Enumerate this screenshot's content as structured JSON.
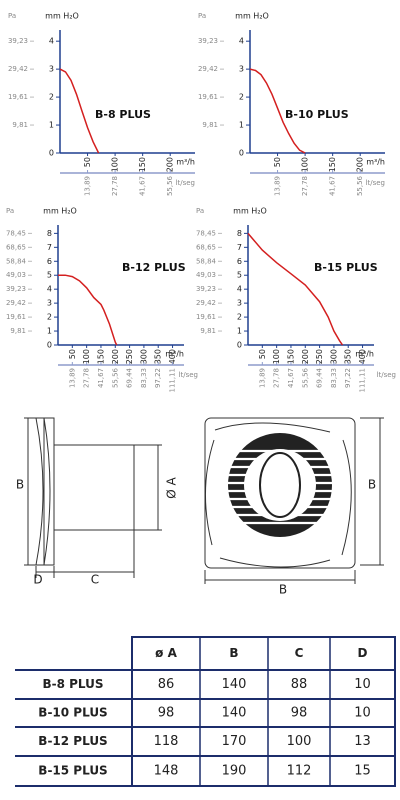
{
  "chart_data": [
    {
      "type": "line",
      "title": "B-8 PLUS",
      "y_label": "mm H₂O",
      "y2_label": "Pa",
      "x_label": "m³/h",
      "x2_label": "lt/seg",
      "color": "#d42020",
      "x": [
        0,
        10,
        20,
        30,
        40,
        50,
        60,
        70
      ],
      "values": [
        3,
        2.9,
        2.6,
        2.1,
        1.5,
        0.9,
        0.4,
        0
      ],
      "xlim": [
        0,
        245
      ],
      "xticks": [
        50,
        100,
        150,
        200
      ],
      "x2lim": [
        0,
        68.06
      ],
      "x2ticks": [
        {
          "value": 13.89,
          "label": "13,89"
        },
        {
          "value": 27.78,
          "label": "27,78"
        },
        {
          "value": 41.67,
          "label": "41,67"
        },
        {
          "value": 55.56,
          "label": "55,56"
        }
      ],
      "ylim": [
        0,
        4.4
      ],
      "yticks": [
        0,
        1,
        2,
        3,
        4
      ],
      "y2lim": [
        0,
        43.15
      ],
      "y2ticks": [
        {
          "value": 9.81,
          "label": "9,81"
        },
        {
          "value": 19.61,
          "label": "19,61"
        },
        {
          "value": 29.42,
          "label": "29,42"
        },
        {
          "value": 39.23,
          "label": "39,23"
        }
      ]
    },
    {
      "type": "line",
      "title": "B-10 PLUS",
      "y_label": "mm H₂O",
      "y2_label": "Pa",
      "x_label": "m³/h",
      "x2_label": "lt/seg",
      "color": "#d42020",
      "x": [
        0,
        10,
        20,
        30,
        40,
        50,
        60,
        70,
        80,
        90,
        100
      ],
      "values": [
        3,
        2.95,
        2.8,
        2.5,
        2.1,
        1.6,
        1.1,
        0.7,
        0.35,
        0.1,
        0
      ],
      "xlim": [
        0,
        245
      ],
      "xticks": [
        50,
        100,
        150,
        200
      ],
      "x2lim": [
        0,
        68.06
      ],
      "x2ticks": [
        {
          "value": 13.89,
          "label": "13,89"
        },
        {
          "value": 27.78,
          "label": "27,78"
        },
        {
          "value": 41.67,
          "label": "41,67"
        },
        {
          "value": 55.56,
          "label": "55,56"
        }
      ],
      "ylim": [
        0,
        4.4
      ],
      "yticks": [
        0,
        1,
        2,
        3,
        4
      ],
      "y2lim": [
        0,
        43.15
      ],
      "y2ticks": [
        {
          "value": 9.81,
          "label": "9,81"
        },
        {
          "value": 19.61,
          "label": "19,61"
        },
        {
          "value": 29.42,
          "label": "29,42"
        },
        {
          "value": 39.23,
          "label": "39,23"
        }
      ]
    },
    {
      "type": "line",
      "title": "B-12 PLUS",
      "y_label": "mm H₂O",
      "y2_label": "Pa",
      "x_label": "m³/h",
      "x2_label": "lt/seg",
      "color": "#d42020",
      "x": [
        0,
        25,
        50,
        75,
        100,
        125,
        140,
        150,
        160,
        180,
        200,
        205
      ],
      "values": [
        5,
        5,
        4.9,
        4.6,
        4.1,
        3.4,
        3.1,
        2.9,
        2.5,
        1.5,
        0.2,
        0
      ],
      "xlim": [
        0,
        440
      ],
      "xticks": [
        50,
        100,
        150,
        200,
        250,
        300,
        350,
        400
      ],
      "x2lim": [
        0,
        122.22
      ],
      "x2ticks": [
        {
          "value": 13.89,
          "label": "13,89"
        },
        {
          "value": 27.78,
          "label": "27,78"
        },
        {
          "value": 41.67,
          "label": "41,67"
        },
        {
          "value": 55.56,
          "label": "55,56"
        },
        {
          "value": 69.44,
          "label": "69,44"
        },
        {
          "value": 83.33,
          "label": "83,33"
        },
        {
          "value": 97.22,
          "label": "97,22"
        },
        {
          "value": 111.11,
          "label": "111,11"
        }
      ],
      "ylim": [
        0,
        8.6
      ],
      "yticks": [
        0,
        1,
        2,
        3,
        4,
        5,
        6,
        7,
        8
      ],
      "y2lim": [
        0,
        84.34
      ],
      "y2ticks": [
        {
          "value": 9.81,
          "label": "9,81"
        },
        {
          "value": 19.61,
          "label": "19,61"
        },
        {
          "value": 29.42,
          "label": "29,42"
        },
        {
          "value": 39.23,
          "label": "39,23"
        },
        {
          "value": 49.03,
          "label": "49,03"
        },
        {
          "value": 58.84,
          "label": "58,84"
        },
        {
          "value": 68.65,
          "label": "68,65"
        },
        {
          "value": 78.45,
          "label": "78,45"
        }
      ]
    },
    {
      "type": "line",
      "title": "B-15 PLUS",
      "y_label": "mm H₂O",
      "y2_label": "Pa",
      "x_label": "m³/h",
      "x2_label": "lt/seg",
      "color": "#d42020",
      "x": [
        0,
        50,
        100,
        150,
        200,
        250,
        280,
        300,
        320,
        330
      ],
      "values": [
        8,
        6.8,
        5.9,
        5.1,
        4.3,
        3.1,
        2,
        1,
        0.3,
        0
      ],
      "xlim": [
        0,
        440
      ],
      "xticks": [
        50,
        100,
        150,
        200,
        250,
        300,
        350,
        400
      ],
      "x2lim": [
        0,
        122.22
      ],
      "x2ticks": [
        {
          "value": 13.89,
          "label": "13,89"
        },
        {
          "value": 27.78,
          "label": "27,78"
        },
        {
          "value": 41.67,
          "label": "41,67"
        },
        {
          "value": 55.56,
          "label": "55,56"
        },
        {
          "value": 69.44,
          "label": "69,44"
        },
        {
          "value": 83.33,
          "label": "83,33"
        },
        {
          "value": 97.22,
          "label": "97,22"
        },
        {
          "value": 111.11,
          "label": "111,11"
        }
      ],
      "ylim": [
        0,
        8.6
      ],
      "yticks": [
        0,
        1,
        2,
        3,
        4,
        5,
        6,
        7,
        8
      ],
      "y2lim": [
        0,
        84.34
      ],
      "y2ticks": [
        {
          "value": 9.81,
          "label": "9,81"
        },
        {
          "value": 19.61,
          "label": "19,61"
        },
        {
          "value": 29.42,
          "label": "29,42"
        },
        {
          "value": 39.23,
          "label": "39,23"
        },
        {
          "value": 49.03,
          "label": "49,03"
        },
        {
          "value": 58.84,
          "label": "58,84"
        },
        {
          "value": 68.65,
          "label": "68,65"
        },
        {
          "value": 78.45,
          "label": "78,45"
        }
      ]
    }
  ],
  "drawing": {
    "side_labels": [
      "B",
      "Ø A",
      "C",
      "D"
    ],
    "front_labels": [
      "B",
      "B"
    ]
  },
  "table": {
    "header": [
      "ø A",
      "B",
      "C",
      "D"
    ],
    "rows": [
      [
        "B-8 PLUS",
        86,
        140,
        88,
        10
      ],
      [
        "B-10 PLUS",
        98,
        140,
        98,
        10
      ],
      [
        "B-12 PLUS",
        118,
        170,
        100,
        13
      ],
      [
        "B-15 PLUS",
        148,
        190,
        112,
        15
      ]
    ]
  }
}
